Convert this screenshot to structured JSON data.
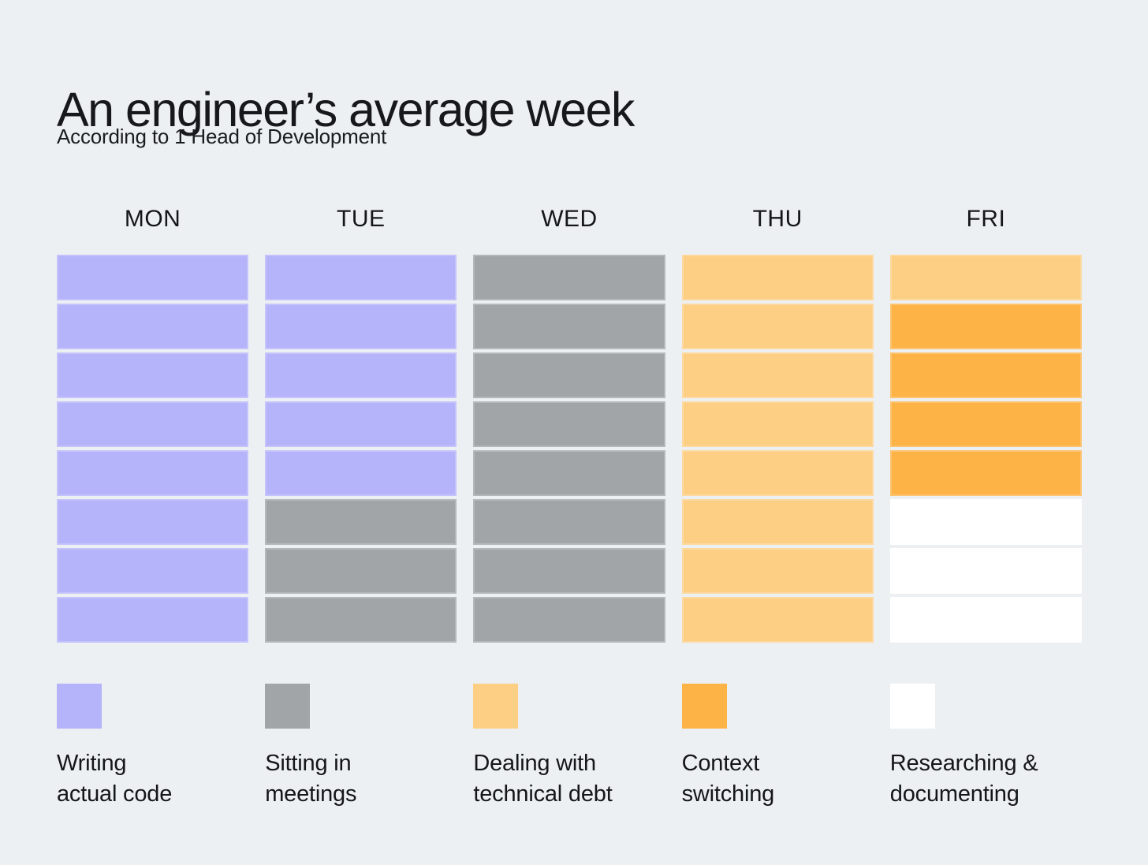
{
  "page": {
    "background": "#edf0f3",
    "text_color": "#16181b"
  },
  "header": {
    "title": "An engineer’s average week",
    "subtitle": "According to 1 Head of Development"
  },
  "chart_data": {
    "type": "heatmap",
    "subtype": "weekly-schedule-waffle",
    "title": "An engineer’s average week",
    "subtitle": "According to 1 Head of Development",
    "columns": [
      "MON",
      "TUE",
      "WED",
      "THU",
      "FRI"
    ],
    "blocks_per_day": 8,
    "legend_position": "bottom",
    "grid_on": false,
    "categories": [
      {
        "id": "writing_code",
        "label": "Writing actual code",
        "legend_lines": [
          "Writing",
          "actual code"
        ],
        "color": "#b5b3fa"
      },
      {
        "id": "meetings",
        "label": "Sitting in meetings",
        "legend_lines": [
          "Sitting in",
          "meetings"
        ],
        "color": "#a1a5a8"
      },
      {
        "id": "tech_debt",
        "label": "Dealing with technical debt",
        "legend_lines": [
          "Dealing with",
          "technical debt"
        ],
        "color": "#fdcf85"
      },
      {
        "id": "context_switching",
        "label": "Context switching",
        "legend_lines": [
          "Context",
          "switching"
        ],
        "color": "#feb347"
      },
      {
        "id": "researching",
        "label": "Researching & documenting",
        "legend_lines": [
          "Researching &",
          "documenting"
        ],
        "color": "#ffffff"
      }
    ],
    "grid": [
      {
        "day": "MON",
        "blocks": [
          "writing_code",
          "writing_code",
          "writing_code",
          "writing_code",
          "writing_code",
          "writing_code",
          "writing_code",
          "writing_code"
        ]
      },
      {
        "day": "TUE",
        "blocks": [
          "writing_code",
          "writing_code",
          "writing_code",
          "writing_code",
          "writing_code",
          "meetings",
          "meetings",
          "meetings"
        ]
      },
      {
        "day": "WED",
        "blocks": [
          "meetings",
          "meetings",
          "meetings",
          "meetings",
          "meetings",
          "meetings",
          "meetings",
          "meetings"
        ]
      },
      {
        "day": "THU",
        "blocks": [
          "tech_debt",
          "tech_debt",
          "tech_debt",
          "tech_debt",
          "tech_debt",
          "tech_debt",
          "tech_debt",
          "tech_debt"
        ]
      },
      {
        "day": "FRI",
        "blocks": [
          "tech_debt",
          "context_switching",
          "context_switching",
          "context_switching",
          "context_switching",
          "researching",
          "researching",
          "researching"
        ]
      }
    ],
    "block_counts": {
      "writing_code": 13,
      "meetings": 11,
      "tech_debt": 9,
      "context_switching": 4,
      "researching": 3
    }
  }
}
